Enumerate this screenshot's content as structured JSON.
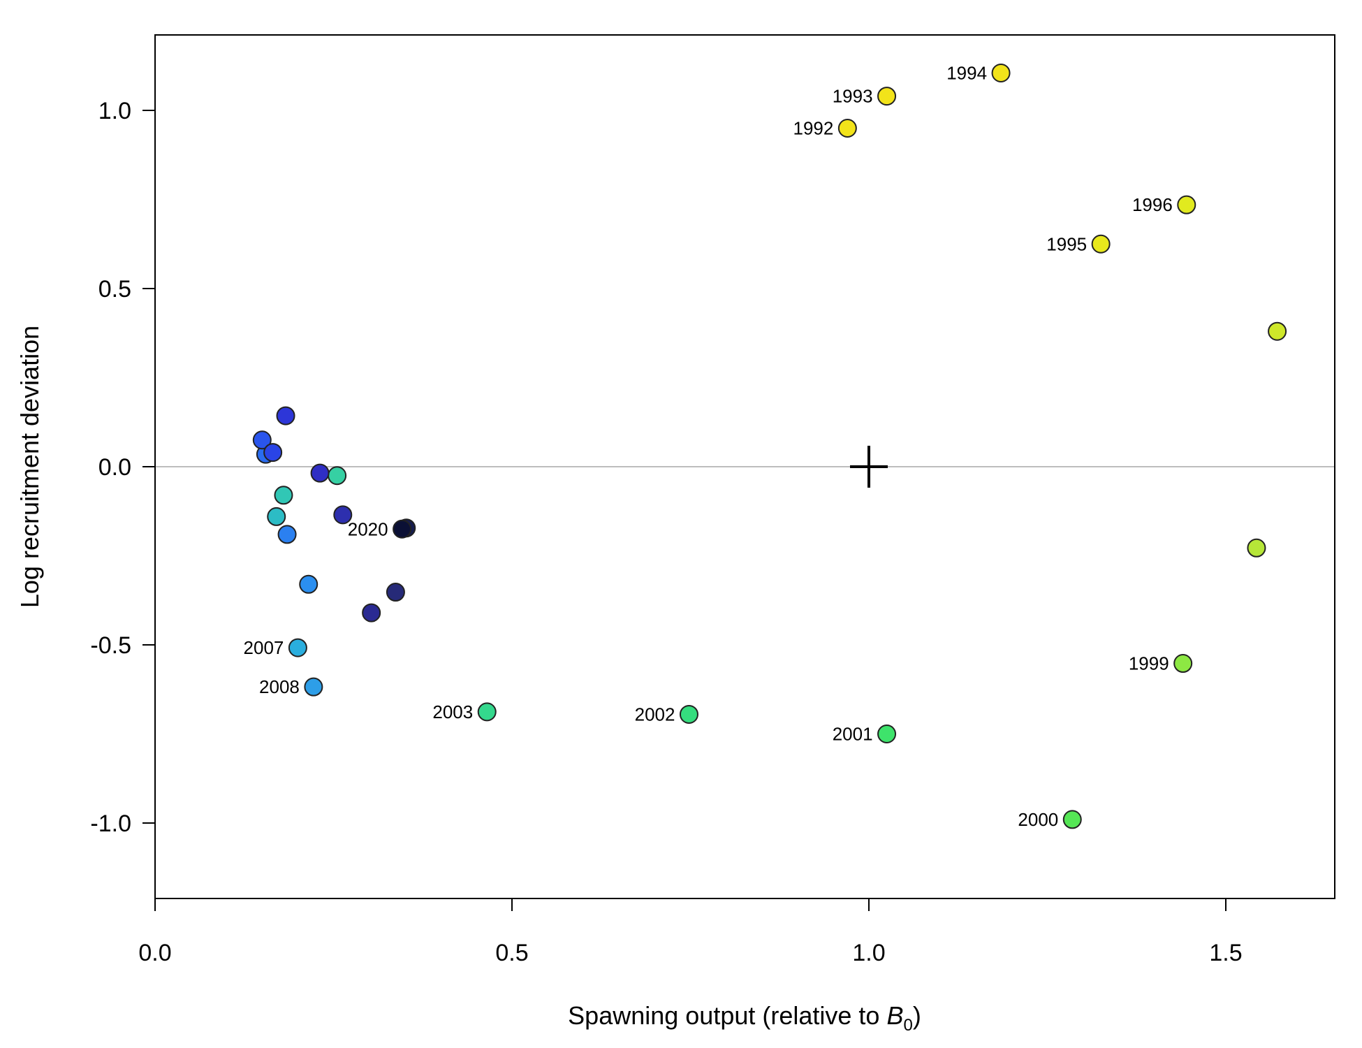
{
  "chart_data": {
    "type": "scatter",
    "xlabel": "Spawning output (relative to ",
    "xlabel_symbol": "B",
    "xlabel_subscript": "0",
    "xlabel_suffix": ")",
    "ylabel": "Log recruitment deviation",
    "xlim": [
      0,
      1.65
    ],
    "ylim": [
      -1.2,
      1.2
    ],
    "x_ticks": [
      0,
      0.5,
      1.0,
      1.5
    ],
    "x_tick_labels": [
      "0.0",
      "0.5",
      "1.0",
      "1.5"
    ],
    "y_ticks": [
      -1,
      -0.5,
      0,
      0.5,
      1
    ],
    "y_tick_labels": [
      "-1.0",
      "-0.5",
      "0.0",
      "0.5",
      "1.0"
    ],
    "reference_line": {
      "y": 0,
      "color": "#bdbdbd"
    },
    "reference_point": {
      "x": 1.0,
      "y": 0.0,
      "marker": "plus"
    },
    "points": [
      {
        "label": "1992",
        "x": 0.97,
        "y": 0.95,
        "color": "#f2e31a"
      },
      {
        "label": "1993",
        "x": 1.025,
        "y": 1.04,
        "color": "#f2e31a"
      },
      {
        "label": "1994",
        "x": 1.185,
        "y": 1.105,
        "color": "#f2e31a"
      },
      {
        "label": "1995",
        "x": 1.325,
        "y": 0.625,
        "color": "#e8e81c"
      },
      {
        "label": "1996",
        "x": 1.445,
        "y": 0.735,
        "color": "#e1ea1f"
      },
      {
        "label": "",
        "x": 1.572,
        "y": 0.38,
        "color": "#cfe82a"
      },
      {
        "label": "",
        "x": 1.543,
        "y": -0.228,
        "color": "#b6e638"
      },
      {
        "label": "1999",
        "x": 1.44,
        "y": -0.552,
        "color": "#8de843"
      },
      {
        "label": "2000",
        "x": 1.285,
        "y": -0.99,
        "color": "#55e655"
      },
      {
        "label": "2001",
        "x": 1.025,
        "y": -0.75,
        "color": "#3ee36b"
      },
      {
        "label": "2002",
        "x": 0.748,
        "y": -0.695,
        "color": "#35dd7e"
      },
      {
        "label": "2003",
        "x": 0.465,
        "y": -0.688,
        "color": "#34d88d"
      },
      {
        "label": "",
        "x": 0.255,
        "y": -0.025,
        "color": "#36d0a3"
      },
      {
        "label": "",
        "x": 0.18,
        "y": -0.08,
        "color": "#31c7b5"
      },
      {
        "label": "",
        "x": 0.17,
        "y": -0.14,
        "color": "#2cbcc5"
      },
      {
        "label": "2007",
        "x": 0.2,
        "y": -0.508,
        "color": "#2aaede"
      },
      {
        "label": "2008",
        "x": 0.222,
        "y": -0.618,
        "color": "#2d9ee8"
      },
      {
        "label": "",
        "x": 0.215,
        "y": -0.33,
        "color": "#2b8ff0"
      },
      {
        "label": "",
        "x": 0.185,
        "y": -0.19,
        "color": "#2b80f0"
      },
      {
        "label": "",
        "x": 0.155,
        "y": 0.035,
        "color": "#2a6cf0"
      },
      {
        "label": "",
        "x": 0.15,
        "y": 0.075,
        "color": "#2a55ec"
      },
      {
        "label": "",
        "x": 0.165,
        "y": 0.04,
        "color": "#2a44e6"
      },
      {
        "label": "",
        "x": 0.183,
        "y": 0.143,
        "color": "#2d36d8"
      },
      {
        "label": "",
        "x": 0.231,
        "y": -0.018,
        "color": "#2f2ec4"
      },
      {
        "label": "",
        "x": 0.263,
        "y": -0.135,
        "color": "#2d2fae"
      },
      {
        "label": "",
        "x": 0.303,
        "y": -0.41,
        "color": "#2a2a92"
      },
      {
        "label": "",
        "x": 0.337,
        "y": -0.352,
        "color": "#262a78"
      },
      {
        "label": "",
        "x": 0.352,
        "y": -0.172,
        "color": "#161c4e"
      },
      {
        "label": "2020",
        "x": 0.346,
        "y": -0.175,
        "color": "#0b1035"
      }
    ]
  }
}
